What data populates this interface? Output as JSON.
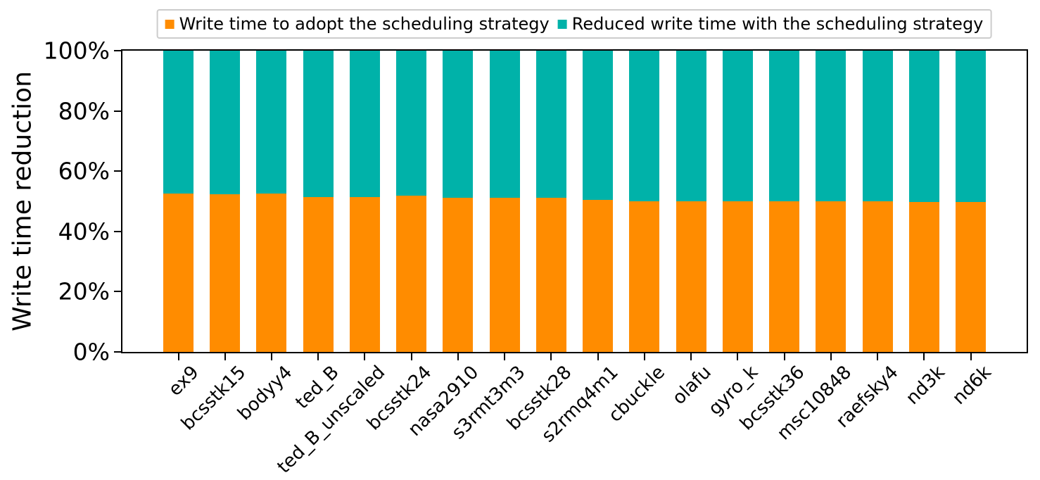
{
  "colors": {
    "orange": "#FF8C00",
    "teal": "#00B2A9",
    "axis": "#000000",
    "legend_border": "#CCCCCC",
    "background": "#FFFFFF"
  },
  "chart_data": {
    "type": "bar",
    "stacked": true,
    "title": "",
    "xlabel": "",
    "ylabel": "Write time reduction",
    "ylim": [
      0,
      100
    ],
    "grid": false,
    "legend_position": "upper center, above axes",
    "yticks": [
      {
        "value": 0,
        "label": "0%"
      },
      {
        "value": 20,
        "label": "20%"
      },
      {
        "value": 40,
        "label": "40%"
      },
      {
        "value": 60,
        "label": "60%"
      },
      {
        "value": 80,
        "label": "80%"
      },
      {
        "value": 100,
        "label": "100%"
      }
    ],
    "categories": [
      "ex9",
      "bcsstk15",
      "bodyy4",
      "ted_B",
      "ted_B_unscaled",
      "bcsstk24",
      "nasa2910",
      "s3rmt3m3",
      "bcsstk28",
      "s2rmq4m1",
      "cbuckle",
      "olafu",
      "gyro_k",
      "bcsstk36",
      "msc10848",
      "raefsky4",
      "nd3k",
      "nd6k"
    ],
    "series": [
      {
        "name": "Write time to adopt the scheduling strategy",
        "color": "#FF8C00",
        "values": [
          52.6,
          52.4,
          52.6,
          51.3,
          51.3,
          51.9,
          51.2,
          51.2,
          51.1,
          50.5,
          49.9,
          50.0,
          49.9,
          49.9,
          49.9,
          49.9,
          49.7,
          49.7
        ]
      },
      {
        "name": "Reduced write time with the scheduling strategy",
        "color": "#00B2A9",
        "values": [
          47.4,
          47.6,
          47.4,
          48.7,
          48.7,
          48.1,
          48.8,
          48.8,
          48.9,
          49.5,
          50.1,
          50.0,
          50.1,
          50.1,
          50.1,
          50.1,
          50.3,
          50.3
        ]
      }
    ]
  }
}
